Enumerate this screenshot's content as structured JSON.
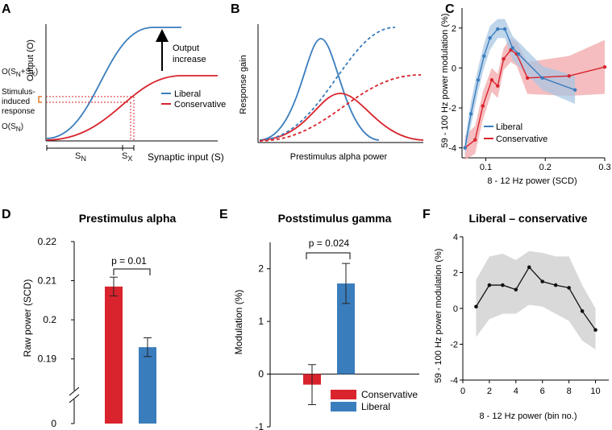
{
  "panels": {
    "A": {
      "letter": "A",
      "y_axis_label": "Output (O)",
      "x_axis_label": "Synaptic input (S)",
      "annot_arrow": [
        "Output",
        "increase"
      ],
      "label_osn_sx": "O(S<sub>N</sub>+S<sub>X</sub>)",
      "label_stim": [
        "Stimulus-",
        "induced",
        "response"
      ],
      "label_osn": "O(S<sub>N</sub>)",
      "label_sn": "S<sub>N</sub>",
      "label_sx": "S<sub>X</sub>",
      "legend": [
        "Liberal",
        "Conservative"
      ]
    },
    "B": {
      "letter": "B",
      "y_axis_label": "Response gain",
      "x_axis_label": "Prestimulus alpha power"
    },
    "C": {
      "letter": "C",
      "y_axis_label": "59 - 100 Hz power modulation (%)",
      "x_axis_label": "8 - 12 Hz power (SCD)",
      "legend": [
        "Liberal",
        "Conservative"
      ]
    },
    "D": {
      "letter": "D",
      "title": "Prestimulus alpha",
      "y_axis_label": "Raw power (SCD)",
      "sig": "p = 0.01"
    },
    "E": {
      "letter": "E",
      "title": "Poststimulus gamma",
      "y_axis_label": "Modulation (%)",
      "sig": "p = 0.024",
      "legend": [
        "Conservative",
        "Liberal"
      ]
    },
    "F": {
      "letter": "F",
      "title": "Liberal – conservative",
      "y_axis_label": "59 - 100 Hz power modulation (%)",
      "x_axis_label": "8 - 12 Hz power (bin no.)"
    }
  },
  "colors": {
    "liberal": "#3a7dbd",
    "conservative": "#d9232d",
    "liberal_band": "#a9c7e3",
    "conservative_band": "#f2a7aa",
    "gray_band": "#d9d9d9"
  },
  "chart_data": [
    {
      "panel": "C",
      "type": "line",
      "xlim": [
        0.06,
        0.3
      ],
      "ylim": [
        -4.5,
        3
      ],
      "xticks": [
        0.1,
        0.2,
        0.3
      ],
      "yticks": [
        -4,
        -2,
        0,
        2
      ],
      "series": [
        {
          "name": "Liberal",
          "x": [
            0.065,
            0.075,
            0.087,
            0.097,
            0.107,
            0.12,
            0.132,
            0.145,
            0.155,
            0.195,
            0.25
          ],
          "y": [
            -4.0,
            -2.3,
            -0.6,
            0.6,
            1.5,
            1.95,
            1.95,
            1.0,
            0.7,
            -0.5,
            -1.1
          ],
          "lo": [
            -4.4,
            -2.9,
            -1.2,
            0.0,
            0.9,
            1.5,
            1.5,
            0.4,
            0.1,
            -1.1,
            -1.8
          ],
          "hi": [
            -3.6,
            -1.7,
            0.0,
            1.2,
            2.1,
            2.45,
            2.45,
            1.6,
            1.3,
            0.1,
            -0.4
          ]
        },
        {
          "name": "Conservative",
          "x": [
            0.065,
            0.082,
            0.095,
            0.11,
            0.12,
            0.13,
            0.142,
            0.152,
            0.17,
            0.24,
            0.3
          ],
          "y": [
            -4.0,
            -3.6,
            -1.9,
            -0.6,
            -0.9,
            0.45,
            0.9,
            0.7,
            -0.5,
            -0.4,
            0.05
          ],
          "lo": [
            -4.6,
            -4.3,
            -2.6,
            -1.2,
            -1.5,
            -0.1,
            0.3,
            0.1,
            -1.3,
            -1.4,
            -1.3
          ],
          "hi": [
            -3.4,
            -2.9,
            -1.2,
            0.0,
            -0.3,
            1.0,
            1.5,
            1.3,
            0.3,
            0.6,
            1.4
          ]
        }
      ]
    },
    {
      "panel": "D",
      "type": "bar",
      "title": "Prestimulus alpha",
      "ylabel": "Raw power (SCD)",
      "ylim": [
        0.185,
        0.22
      ],
      "yticks": [
        0.19,
        0.2,
        0.21,
        0.22
      ],
      "ytick_labels": [
        "0.19",
        "0.2",
        "0.21",
        "0.22"
      ],
      "zero_label": "0",
      "series": [
        {
          "name": "Conservative",
          "value": 0.2085,
          "err": 0.0024
        },
        {
          "name": "Liberal",
          "value": 0.193,
          "err": 0.0024
        }
      ]
    },
    {
      "panel": "E",
      "type": "bar",
      "title": "Poststimulus gamma",
      "ylabel": "Modulation (%)",
      "ylim": [
        -1,
        2.5
      ],
      "yticks": [
        -1,
        0,
        1,
        2
      ],
      "series": [
        {
          "name": "Conservative",
          "value": -0.2,
          "err": 0.38
        },
        {
          "name": "Liberal",
          "value": 1.72,
          "err": 0.38
        }
      ]
    },
    {
      "panel": "F",
      "type": "line",
      "title": "Liberal – conservative",
      "xlim": [
        0,
        11
      ],
      "ylim": [
        -4,
        4
      ],
      "xticks": [
        0,
        2,
        4,
        6,
        8,
        10
      ],
      "yticks": [
        -4,
        -2,
        0,
        2,
        4
      ],
      "x": [
        1,
        2,
        3,
        4,
        5,
        6,
        7,
        8,
        9,
        10
      ],
      "y": [
        0.1,
        1.3,
        1.3,
        1.05,
        2.3,
        1.5,
        1.3,
        1.15,
        -0.15,
        -1.2
      ],
      "lo": [
        -1.6,
        -0.6,
        -0.3,
        -0.3,
        0.2,
        0.1,
        -0.3,
        -0.7,
        -1.8,
        -2.3
      ],
      "hi": [
        1.6,
        2.9,
        3.05,
        2.7,
        3.2,
        3.1,
        2.9,
        2.9,
        1.3,
        0.0
      ]
    }
  ]
}
